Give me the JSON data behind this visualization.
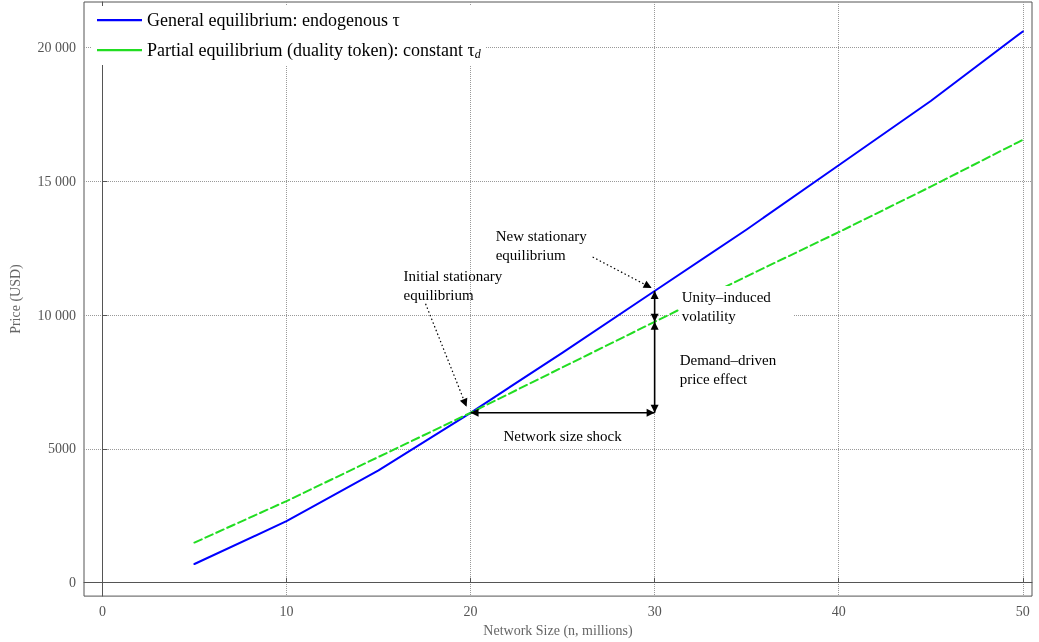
{
  "chart_data": {
    "type": "line",
    "xlabel": "Network Size (n, millions)",
    "ylabel": "Price (USD)",
    "xlim": [
      -1,
      50.5
    ],
    "ylim": [
      -500,
      21700
    ],
    "xticks": [
      0,
      10,
      20,
      30,
      40,
      50
    ],
    "yticks": [
      0,
      5000,
      {
        "value": 10000,
        "label": "10 000"
      },
      {
        "value": 15000,
        "label": "15 000"
      },
      {
        "value": 20000,
        "label": "20 000"
      }
    ],
    "grid": true,
    "legend": "top left",
    "marker": "none",
    "series": [
      {
        "name": "General equilibrium: endogenous τ",
        "color": "#0000ff",
        "line_style": "solid",
        "x": [
          5,
          10,
          15,
          20,
          25,
          30,
          35,
          40,
          45,
          50
        ],
        "values": [
          700,
          2300,
          4200,
          6350,
          8600,
          10900,
          13200,
          15600,
          18000,
          20600
        ]
      },
      {
        "name": "Partial equilibrium (duality token): constant τ$_{d}$",
        "color": "#22dd22",
        "line_style": "dashed",
        "x": [
          5,
          10,
          15,
          20,
          25,
          30,
          35,
          40,
          45,
          50
        ],
        "values": [
          1500,
          3050,
          4700,
          6350,
          8050,
          9750,
          11450,
          13100,
          14800,
          16550
        ]
      }
    ],
    "annotations": [
      {
        "text": "Initial stationary equilibrium",
        "x": 20,
        "y": 6350
      },
      {
        "text": "New stationary equilibrium",
        "x": 30,
        "y": 10900
      },
      "Unity–induced volatility",
      "Demand–driven price effect",
      "Network size shock"
    ]
  }
}
